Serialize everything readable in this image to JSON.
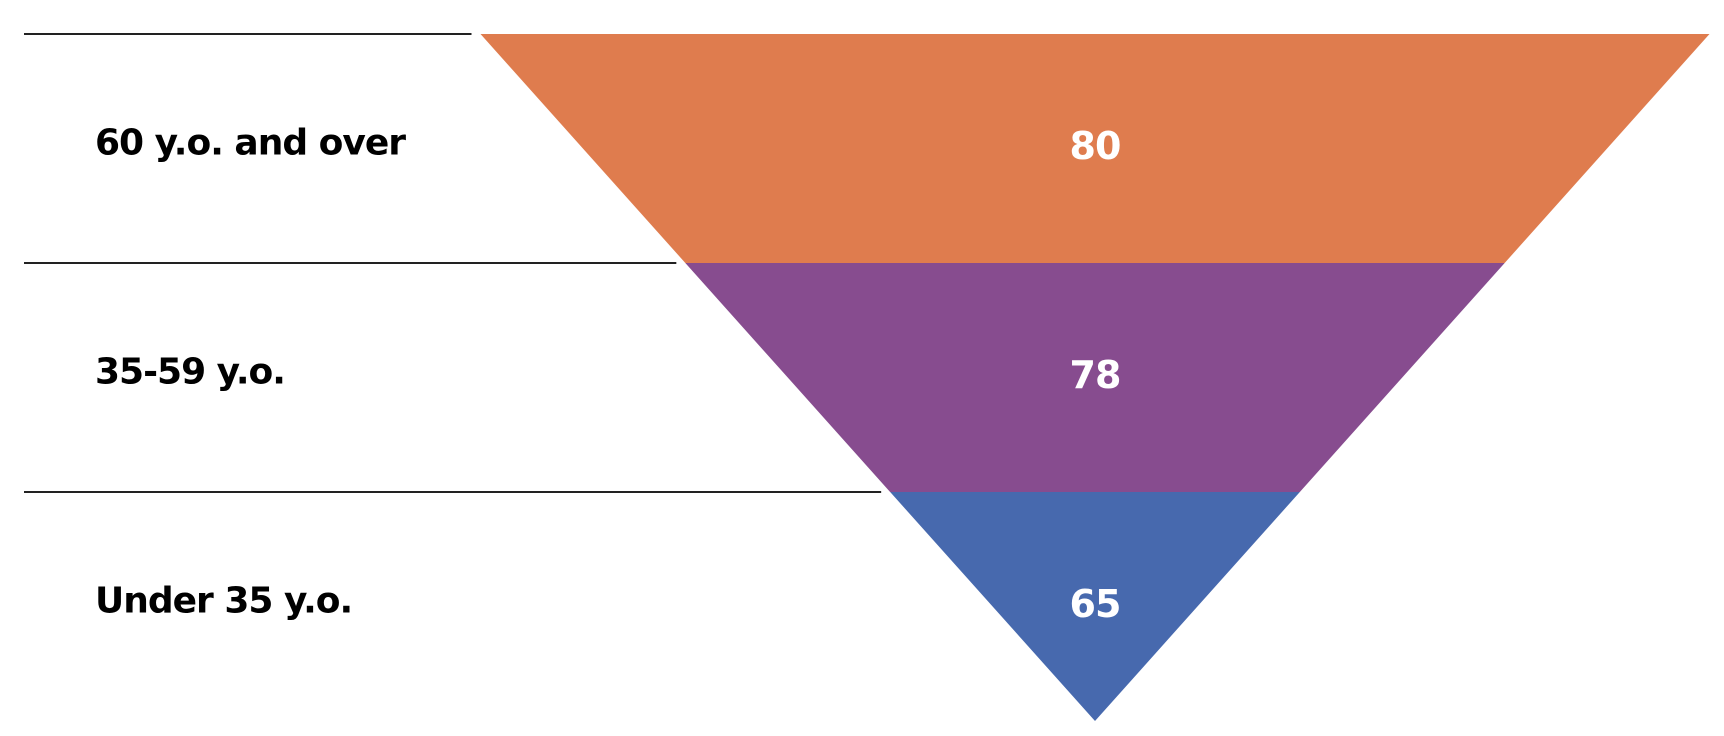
{
  "chart_data": {
    "type": "funnel",
    "categories": [
      "60 y.o. and over",
      "35-59 y.o.",
      "Under 35 y.o."
    ],
    "values": [
      80,
      78,
      65
    ],
    "colors": [
      "#df7c4e",
      "#874c8f",
      "#4769ae"
    ]
  }
}
